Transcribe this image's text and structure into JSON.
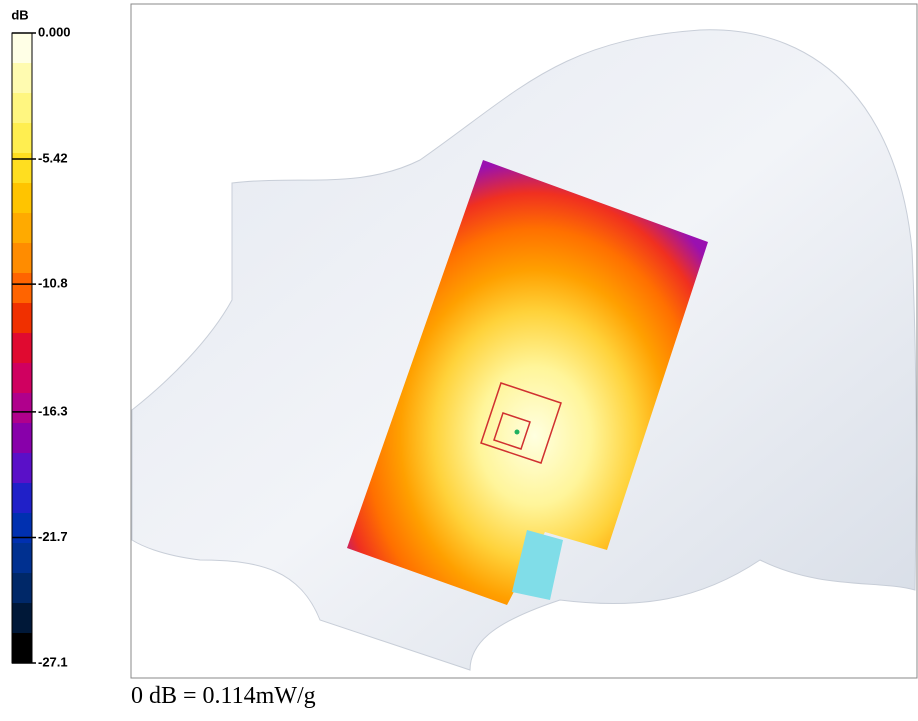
{
  "colorbar": {
    "title": "dB",
    "lim": [
      -27.1,
      0
    ],
    "ticks": [
      {
        "value": 0,
        "label": "0.000"
      },
      -5.42,
      -10.8,
      -16.3,
      -21.7,
      -27.1
    ],
    "colors": [
      "#ffffe6",
      "#fffbb0",
      "#fff680",
      "#ffee50",
      "#ffde20",
      "#ffc400",
      "#ffaa00",
      "#ff8c00",
      "#ff6400",
      "#f03000",
      "#e00a30",
      "#d00060",
      "#b0008c",
      "#8800aa",
      "#5a10c8",
      "#2020c8",
      "#0030b0",
      "#003090",
      "#002868",
      "#001838",
      "#000000"
    ]
  },
  "caption": "0 dB = 0.114mW/g"
}
